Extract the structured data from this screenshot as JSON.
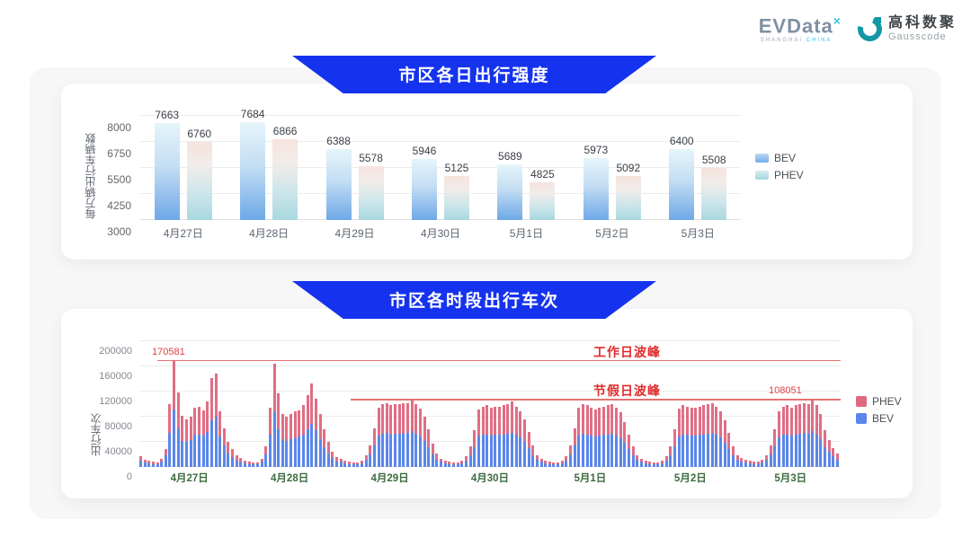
{
  "header": {
    "evdata": {
      "word": "EVData",
      "sup": "×",
      "sub1": "SHANGHAI",
      "sub2": "CHINA"
    },
    "gausscode": {
      "cn": "高科数聚",
      "en": "Gausscode"
    }
  },
  "colors": {
    "banner_blue": "#1533ee",
    "bev_bottom_chart": "#5b87ea",
    "phev_bottom_chart": "#e06e85",
    "annotation_red": "#e02a2a",
    "card_bg": "#ffffff",
    "panel_bg": "#f7f7f8"
  },
  "chart_data": [
    {
      "type": "bar",
      "title": "市区各日出行强度",
      "ylabel": "每万辆出行车辆数",
      "yticks": [
        3000,
        4250,
        5500,
        6750,
        8000
      ],
      "ylim": [
        3000,
        8250
      ],
      "grid": true,
      "legend_position": "right",
      "categories": [
        "4月27日",
        "4月28日",
        "4月29日",
        "4月30日",
        "5月1日",
        "5月2日",
        "5月3日"
      ],
      "series": [
        {
          "name": "BEV",
          "values": [
            7663,
            7684,
            6388,
            5946,
            5689,
            5973,
            6400
          ]
        },
        {
          "name": "PHEV",
          "values": [
            6760,
            6866,
            5578,
            5125,
            4825,
            5092,
            5508
          ]
        }
      ],
      "legend": [
        {
          "name": "BEV"
        },
        {
          "name": "PHEV"
        }
      ]
    },
    {
      "type": "bar",
      "subtype": "stacked-hourly",
      "title": "市区各时段出行车次",
      "ylabel": "出行车次",
      "yticks": [
        0,
        40000,
        80000,
        120000,
        160000,
        200000
      ],
      "ylim": [
        0,
        200000
      ],
      "grid": true,
      "legend_position": "right",
      "legend": [
        {
          "name": "PHEV"
        },
        {
          "name": "BEV"
        }
      ],
      "annotations": {
        "workday": {
          "label": "工作日波峰",
          "value": 170581,
          "value_label": "170581"
        },
        "holiday": {
          "label": "节假日波峰",
          "value": 108051,
          "value_label": "108051"
        }
      },
      "categories": [
        "4月27日",
        "4月28日",
        "4月29日",
        "4月30日",
        "5月1日",
        "5月2日",
        "5月3日"
      ],
      "days": [
        {
          "date": "4月27日",
          "bev": [
            10000,
            7000,
            6000,
            5000,
            4000,
            8000,
            18000,
            55000,
            92000,
            62000,
            42000,
            40000,
            43000,
            52000,
            52000,
            50000,
            56000,
            75000,
            80000,
            48000,
            34000,
            22000,
            16000,
            10000
          ],
          "phev": [
            7000,
            5000,
            4000,
            3000,
            3000,
            5000,
            10000,
            45000,
            78581,
            57000,
            39000,
            36000,
            37000,
            43000,
            44000,
            40000,
            48000,
            66000,
            68000,
            40000,
            28000,
            18000,
            12000,
            8000
          ]
        },
        {
          "date": "4月28日",
          "bev": [
            9000,
            6000,
            5000,
            4000,
            4000,
            8000,
            20000,
            52000,
            88000,
            60000,
            45000,
            42000,
            44000,
            46000,
            48000,
            52000,
            60000,
            68000,
            58000,
            45000,
            32000,
            22000,
            14000,
            9000
          ],
          "phev": [
            6000,
            4000,
            3000,
            3000,
            3000,
            5000,
            13000,
            43000,
            76000,
            57000,
            40000,
            38000,
            40000,
            42000,
            42000,
            46000,
            55000,
            65000,
            50000,
            40000,
            28000,
            18000,
            11000,
            7000
          ]
        },
        {
          "date": "4月29日",
          "bev": [
            8000,
            6000,
            5000,
            4000,
            4000,
            6000,
            11000,
            20000,
            34000,
            50000,
            53000,
            54000,
            52000,
            53000,
            53000,
            53000,
            54000,
            57000,
            53000,
            49000,
            42000,
            32000,
            20000,
            12000
          ],
          "phev": [
            5000,
            4000,
            3000,
            3000,
            3000,
            4000,
            8000,
            15000,
            28000,
            45000,
            47000,
            48000,
            46000,
            47000,
            47000,
            48000,
            48000,
            51000,
            47000,
            44000,
            38000,
            28000,
            17000,
            9000
          ]
        },
        {
          "date": "4月30日",
          "bev": [
            8000,
            6000,
            5000,
            4000,
            4000,
            6000,
            10000,
            19000,
            32000,
            48000,
            51000,
            52000,
            50000,
            51000,
            51000,
            52000,
            53000,
            55000,
            51000,
            47000,
            40000,
            30000,
            19000,
            11000
          ],
          "phev": [
            5000,
            4000,
            3000,
            3000,
            3000,
            4000,
            7000,
            14000,
            26000,
            43000,
            45000,
            46000,
            44000,
            45000,
            45000,
            46000,
            47000,
            49000,
            45000,
            42000,
            36000,
            26000,
            16000,
            8000
          ]
        },
        {
          "date": "5月1日",
          "bev": [
            8000,
            6000,
            5000,
            4000,
            4000,
            6000,
            10000,
            20000,
            34000,
            50000,
            53000,
            52000,
            50000,
            49000,
            50000,
            51000,
            52000,
            53000,
            50000,
            46000,
            38000,
            28000,
            18000,
            11000
          ],
          "phev": [
            5000,
            4000,
            3000,
            3000,
            3000,
            4000,
            7000,
            15000,
            28000,
            45000,
            47000,
            46000,
            44000,
            43000,
            44000,
            45000,
            46000,
            47000,
            44000,
            41000,
            34000,
            24000,
            15000,
            8000
          ]
        },
        {
          "date": "5月2日",
          "bev": [
            8000,
            6000,
            5000,
            4000,
            4000,
            6000,
            10000,
            19000,
            33000,
            49000,
            52000,
            51000,
            50000,
            50000,
            51000,
            52000,
            53000,
            54000,
            51000,
            47000,
            39000,
            29000,
            18000,
            11000
          ],
          "phev": [
            5000,
            4000,
            3000,
            3000,
            3000,
            4000,
            7000,
            14000,
            27000,
            44000,
            46000,
            45000,
            44000,
            44000,
            45000,
            46000,
            47000,
            48000,
            45000,
            42000,
            35000,
            25000,
            15000,
            8000
          ]
        },
        {
          "date": "5月3日",
          "bev": [
            9000,
            7000,
            6000,
            5000,
            5000,
            7000,
            11000,
            20000,
            33000,
            47000,
            51000,
            52000,
            50000,
            52000,
            53000,
            54000,
            53000,
            57051,
            52000,
            45000,
            32000,
            24000,
            17000,
            12000
          ],
          "phev": [
            6000,
            5000,
            4000,
            3000,
            3000,
            5000,
            8000,
            15000,
            27000,
            41000,
            45000,
            46000,
            44000,
            46000,
            47000,
            48000,
            47000,
            51000,
            46000,
            39000,
            27000,
            19000,
            13000,
            9000
          ]
        }
      ]
    }
  ]
}
